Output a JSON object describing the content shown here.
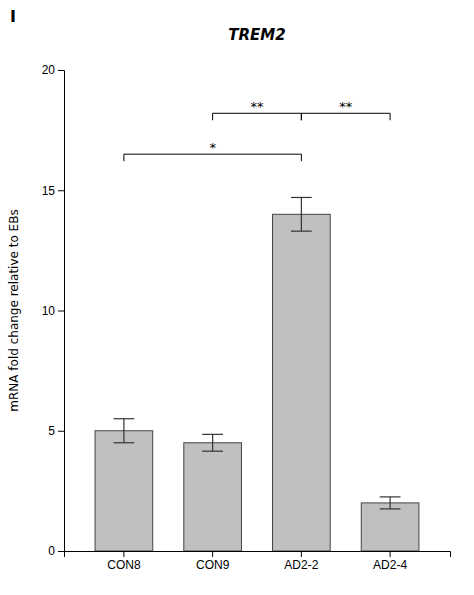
{
  "chart_data": {
    "type": "bar",
    "title": "TREM2",
    "panel_label": "I",
    "ylabel": "mRNA fold change relative to EBs",
    "categories": [
      "CON8",
      "CON9",
      "AD2-2",
      "AD2-4"
    ],
    "values": [
      5.0,
      4.5,
      14.0,
      2.0
    ],
    "errors": [
      0.5,
      0.35,
      0.7,
      0.25
    ],
    "color": "#c0c0c0",
    "ylim": [
      0,
      20
    ],
    "yticks": [
      0,
      5,
      10,
      15,
      20
    ],
    "grid": false,
    "annotations": [
      {
        "from": "CON8",
        "to": "AD2-2",
        "y": 16.5,
        "label": "*"
      },
      {
        "from": "CON9",
        "to": "AD2-2",
        "y": 18.2,
        "label": "**"
      },
      {
        "from": "AD2-2",
        "to": "AD2-4",
        "y": 18.2,
        "label": "**"
      }
    ]
  }
}
